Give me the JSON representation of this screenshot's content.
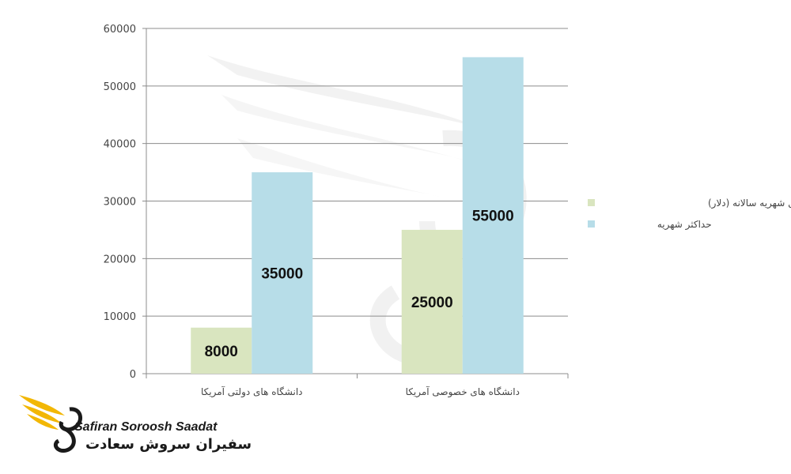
{
  "chart_data": {
    "type": "bar",
    "categories": [
      "دانشگاه های دولتی آمریکا",
      "دانشگاه های خصوصی آمریکا"
    ],
    "series": [
      {
        "name": "حداقل شهریه سالانه (دلار)",
        "values": [
          8000,
          25000
        ],
        "color": "#d9e5bf"
      },
      {
        "name": "حداکثر شهریه",
        "values": [
          35000,
          55000
        ],
        "color": "#b7dde8"
      }
    ],
    "data_labels": [
      "8000",
      "25000",
      "35000",
      "55000"
    ],
    "ylim": [
      0,
      60000
    ],
    "yticks": [
      0,
      10000,
      20000,
      30000,
      40000,
      50000,
      60000
    ],
    "grid": true,
    "legend_position": "right"
  },
  "logo": {
    "name_en": "Safiran Soroosh Saadat",
    "name_fa": "سفیران سروش سعادت",
    "wing_color": "#f2b705"
  }
}
